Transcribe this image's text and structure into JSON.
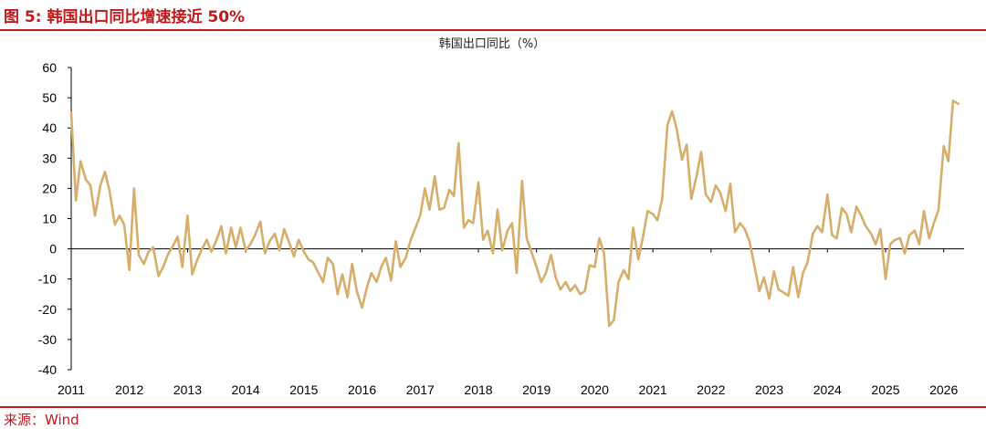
{
  "header": {
    "title": "图 5:  韩国出口同比增速接近 50%"
  },
  "footer": {
    "source": "来源：Wind"
  },
  "colors": {
    "accent": "#c0181b",
    "series": "#d6ae6a"
  },
  "chart_data": {
    "type": "line",
    "title": "韩国出口同比（%）",
    "xlabel": "",
    "ylabel": "",
    "ylim": [
      -40,
      60
    ],
    "yticks": [
      60,
      50,
      40,
      30,
      20,
      10,
      0,
      -10,
      -20,
      -30,
      -40
    ],
    "xlim": [
      2011.0,
      2026.35
    ],
    "xticks": [
      "2011",
      "2012",
      "2013",
      "2014",
      "2015",
      "2016",
      "2017",
      "2018",
      "2019",
      "2020",
      "2021",
      "2022",
      "2023",
      "2024",
      "2025",
      "2026"
    ],
    "grid": false,
    "legend": "none",
    "series": [
      {
        "name": "韩国出口同比",
        "points": [
          [
            2011.0,
            45
          ],
          [
            2011.08,
            16
          ],
          [
            2011.16,
            29
          ],
          [
            2011.25,
            23
          ],
          [
            2011.33,
            21
          ],
          [
            2011.41,
            11
          ],
          [
            2011.5,
            21
          ],
          [
            2011.58,
            25.5
          ],
          [
            2011.66,
            19
          ],
          [
            2011.75,
            8
          ],
          [
            2011.83,
            11
          ],
          [
            2011.91,
            8
          ],
          [
            2012.0,
            -7
          ],
          [
            2012.08,
            20
          ],
          [
            2012.16,
            -2
          ],
          [
            2012.25,
            -5
          ],
          [
            2012.33,
            -1
          ],
          [
            2012.41,
            0.5
          ],
          [
            2012.5,
            -9
          ],
          [
            2012.58,
            -6
          ],
          [
            2012.66,
            -2
          ],
          [
            2012.75,
            1
          ],
          [
            2012.83,
            4
          ],
          [
            2012.91,
            -6
          ],
          [
            2013.0,
            11
          ],
          [
            2013.08,
            -8.5
          ],
          [
            2013.16,
            -4
          ],
          [
            2013.25,
            0
          ],
          [
            2013.33,
            3
          ],
          [
            2013.41,
            -1
          ],
          [
            2013.5,
            3
          ],
          [
            2013.58,
            7.5
          ],
          [
            2013.66,
            -1.5
          ],
          [
            2013.75,
            7
          ],
          [
            2013.83,
            0.5
          ],
          [
            2013.91,
            7
          ],
          [
            2014.0,
            -0.5
          ],
          [
            2014.08,
            1.5
          ],
          [
            2014.16,
            4.5
          ],
          [
            2014.25,
            9
          ],
          [
            2014.33,
            -1.5
          ],
          [
            2014.41,
            2.5
          ],
          [
            2014.5,
            5
          ],
          [
            2014.58,
            -0.5
          ],
          [
            2014.66,
            6.5
          ],
          [
            2014.75,
            2
          ],
          [
            2014.83,
            -2.5
          ],
          [
            2014.91,
            3
          ],
          [
            2015.0,
            -1
          ],
          [
            2015.08,
            -3.5
          ],
          [
            2015.16,
            -4.5
          ],
          [
            2015.25,
            -8
          ],
          [
            2015.33,
            -11
          ],
          [
            2015.41,
            -3
          ],
          [
            2015.5,
            -5
          ],
          [
            2015.58,
            -15
          ],
          [
            2015.66,
            -8.5
          ],
          [
            2015.75,
            -16
          ],
          [
            2015.83,
            -5
          ],
          [
            2015.91,
            -14
          ],
          [
            2016.0,
            -19.5
          ],
          [
            2016.08,
            -13
          ],
          [
            2016.16,
            -8
          ],
          [
            2016.25,
            -11
          ],
          [
            2016.33,
            -6
          ],
          [
            2016.41,
            -3
          ],
          [
            2016.5,
            -10.5
          ],
          [
            2016.58,
            2.5
          ],
          [
            2016.66,
            -6
          ],
          [
            2016.75,
            -3
          ],
          [
            2016.83,
            2.5
          ],
          [
            2016.91,
            6.5
          ],
          [
            2017.0,
            11
          ],
          [
            2017.08,
            20
          ],
          [
            2017.16,
            13
          ],
          [
            2017.25,
            24
          ],
          [
            2017.33,
            13
          ],
          [
            2017.41,
            13.5
          ],
          [
            2017.5,
            19.5
          ],
          [
            2017.58,
            17.5
          ],
          [
            2017.66,
            35
          ],
          [
            2017.75,
            7
          ],
          [
            2017.83,
            9.5
          ],
          [
            2017.91,
            8.5
          ],
          [
            2018.0,
            22
          ],
          [
            2018.08,
            3
          ],
          [
            2018.16,
            6
          ],
          [
            2018.25,
            -1.5
          ],
          [
            2018.33,
            13
          ],
          [
            2018.41,
            -0.5
          ],
          [
            2018.5,
            6
          ],
          [
            2018.58,
            8.5
          ],
          [
            2018.66,
            -8
          ],
          [
            2018.75,
            22.5
          ],
          [
            2018.83,
            3.5
          ],
          [
            2018.91,
            -1
          ],
          [
            2019.0,
            -6
          ],
          [
            2019.08,
            -11
          ],
          [
            2019.16,
            -8
          ],
          [
            2019.25,
            -2
          ],
          [
            2019.33,
            -9.5
          ],
          [
            2019.41,
            -13.5
          ],
          [
            2019.5,
            -11
          ],
          [
            2019.58,
            -14
          ],
          [
            2019.66,
            -12
          ],
          [
            2019.75,
            -15
          ],
          [
            2019.83,
            -14
          ],
          [
            2019.91,
            -5.5
          ],
          [
            2020.0,
            -6
          ],
          [
            2020.08,
            3.5
          ],
          [
            2020.16,
            -1.5
          ],
          [
            2020.25,
            -25.5
          ],
          [
            2020.33,
            -23.5
          ],
          [
            2020.41,
            -11
          ],
          [
            2020.5,
            -7
          ],
          [
            2020.58,
            -10
          ],
          [
            2020.66,
            7
          ],
          [
            2020.75,
            -3.5
          ],
          [
            2020.83,
            4
          ],
          [
            2020.91,
            12.5
          ],
          [
            2021.0,
            11.5
          ],
          [
            2021.08,
            9.5
          ],
          [
            2021.16,
            16.5
          ],
          [
            2021.25,
            41
          ],
          [
            2021.33,
            45.5
          ],
          [
            2021.41,
            39.5
          ],
          [
            2021.5,
            29.5
          ],
          [
            2021.58,
            34.5
          ],
          [
            2021.66,
            16.5
          ],
          [
            2021.75,
            24
          ],
          [
            2021.83,
            32
          ],
          [
            2021.91,
            18
          ],
          [
            2022.0,
            15.5
          ],
          [
            2022.08,
            21
          ],
          [
            2022.16,
            18.5
          ],
          [
            2022.25,
            12.5
          ],
          [
            2022.33,
            21.5
          ],
          [
            2022.41,
            5.5
          ],
          [
            2022.5,
            8.5
          ],
          [
            2022.58,
            6.5
          ],
          [
            2022.66,
            2.5
          ],
          [
            2022.75,
            -6
          ],
          [
            2022.83,
            -14
          ],
          [
            2022.91,
            -9.5
          ],
          [
            2023.0,
            -16.5
          ],
          [
            2023.08,
            -7.5
          ],
          [
            2023.16,
            -13.5
          ],
          [
            2023.25,
            -14.5
          ],
          [
            2023.33,
            -15.5
          ],
          [
            2023.41,
            -6
          ],
          [
            2023.5,
            -16
          ],
          [
            2023.58,
            -8
          ],
          [
            2023.66,
            -4.5
          ],
          [
            2023.75,
            5
          ],
          [
            2023.83,
            7.5
          ],
          [
            2023.91,
            5.5
          ],
          [
            2024.0,
            18
          ],
          [
            2024.08,
            4.5
          ],
          [
            2024.16,
            3.5
          ],
          [
            2024.25,
            13.5
          ],
          [
            2024.33,
            11.5
          ],
          [
            2024.41,
            5.5
          ],
          [
            2024.5,
            14
          ],
          [
            2024.58,
            11
          ],
          [
            2024.66,
            7.5
          ],
          [
            2024.75,
            5
          ],
          [
            2024.83,
            1.5
          ],
          [
            2024.91,
            6.5
          ],
          [
            2025.0,
            -10
          ],
          [
            2025.08,
            1.5
          ],
          [
            2025.16,
            3
          ],
          [
            2025.25,
            3.5
          ],
          [
            2025.33,
            -1.5
          ],
          [
            2025.41,
            4.5
          ],
          [
            2025.5,
            6
          ],
          [
            2025.58,
            1.5
          ],
          [
            2025.66,
            12.5
          ],
          [
            2025.75,
            3.5
          ],
          [
            2025.83,
            8.5
          ],
          [
            2025.91,
            13
          ],
          [
            2026.0,
            34
          ],
          [
            2026.08,
            29
          ],
          [
            2026.16,
            49
          ],
          [
            2026.25,
            48
          ]
        ]
      }
    ]
  }
}
